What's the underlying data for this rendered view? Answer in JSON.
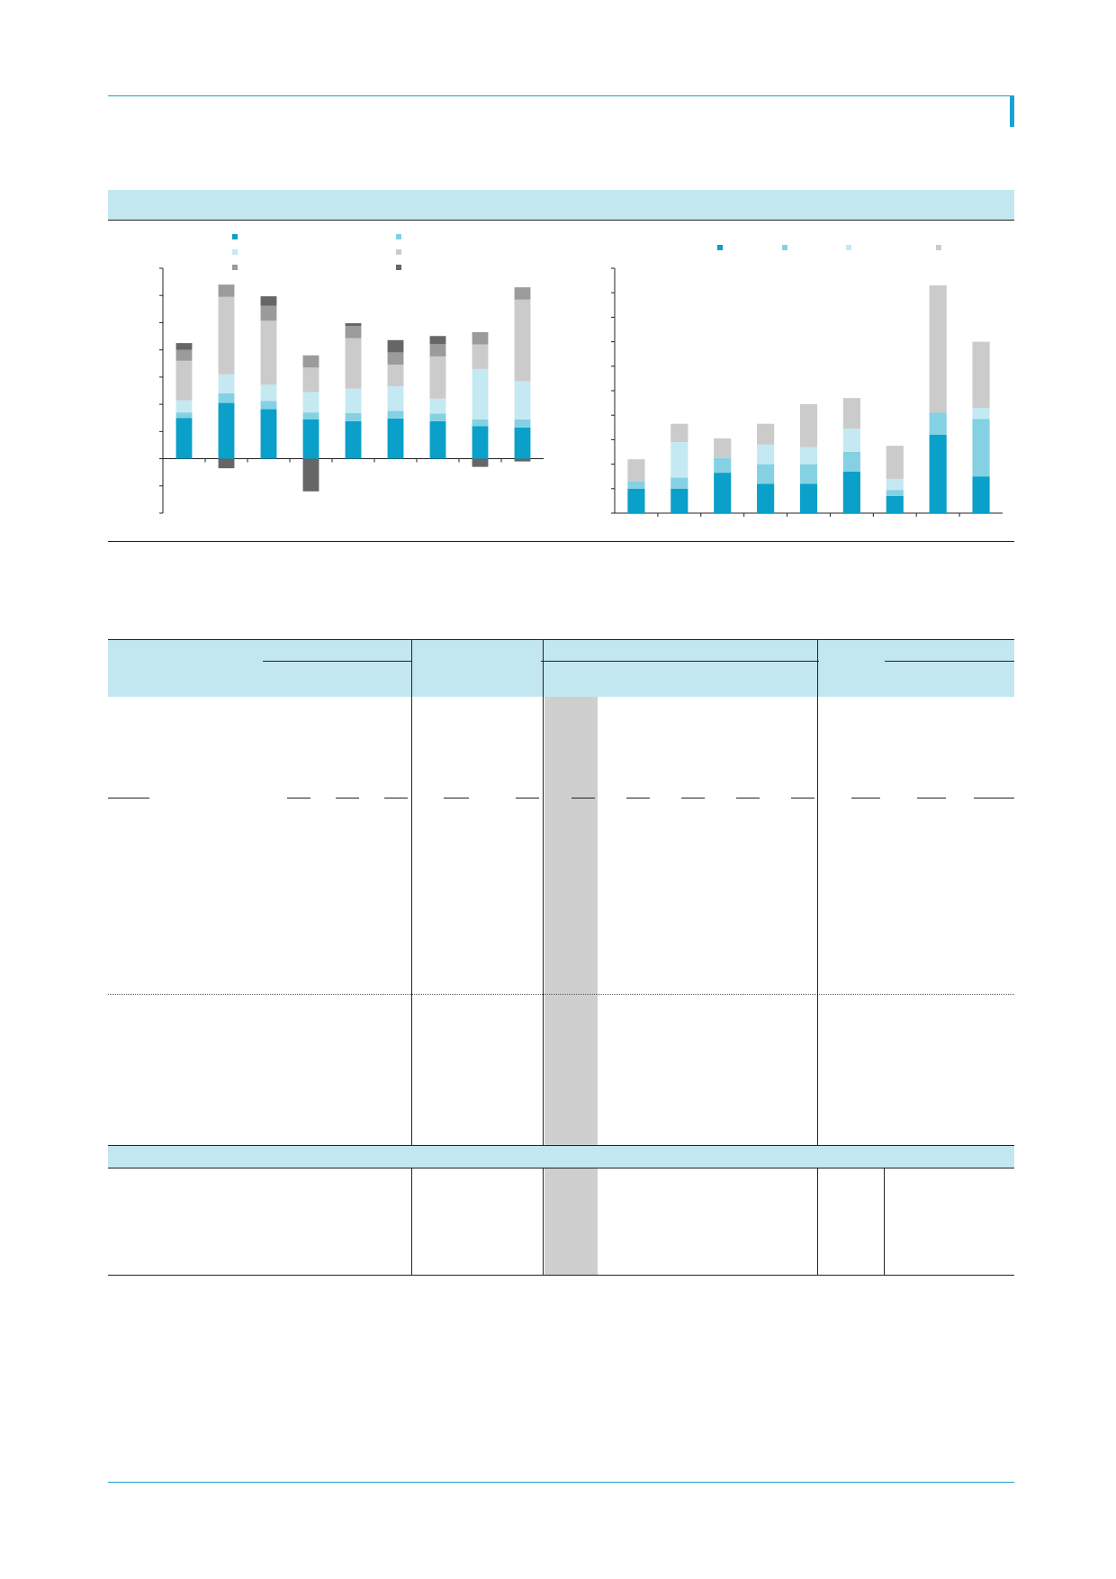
{
  "colors": {
    "accent": "#1aa3d1",
    "header_band": "#c3e7f1",
    "series_1": "#0aa0c9",
    "series_2": "#84d1e3",
    "series_3": "#c5e9f3",
    "series_4": "#cbcbcb",
    "series_5": "#9b9b9b",
    "series_6": "#666666",
    "shaded_column": "#cfcfcf"
  },
  "chart_data": [
    {
      "type": "bar",
      "stacked": true,
      "title": "",
      "xlabel": "",
      "ylabel": "",
      "categories": [
        "",
        "",
        "",
        "",
        "",
        "",
        "",
        "",
        ""
      ],
      "ylim": [
        -2,
        7
      ],
      "yticks": [
        -2,
        -1,
        0,
        1,
        2,
        3,
        4,
        5,
        6,
        7
      ],
      "legend_position": "top",
      "series": [
        {
          "name": "",
          "color": "#0aa0c9",
          "values": [
            1.5,
            2.05,
            1.82,
            1.45,
            1.38,
            1.48,
            1.38,
            1.2,
            1.15
          ]
        },
        {
          "name": "",
          "color": "#84d1e3",
          "values": [
            0.2,
            0.35,
            0.3,
            0.25,
            0.3,
            0.28,
            0.28,
            0.25,
            0.3
          ]
        },
        {
          "name": "",
          "color": "#c5e9f3",
          "values": [
            0.45,
            0.7,
            0.6,
            0.75,
            0.9,
            0.9,
            0.55,
            1.85,
            1.4
          ]
        },
        {
          "name": "",
          "color": "#cbcbcb",
          "values": [
            1.45,
            2.85,
            2.35,
            0.9,
            1.85,
            0.8,
            1.55,
            0.9,
            3.0
          ]
        },
        {
          "name": "",
          "color": "#9b9b9b",
          "values": [
            0.4,
            0.45,
            0.55,
            0.45,
            0.45,
            0.45,
            0.45,
            0.45,
            0.45
          ]
        },
        {
          "name": "",
          "color": "#666666",
          "values": [
            0.25,
            -0.35,
            0.35,
            -1.2,
            0.1,
            0.45,
            0.3,
            -0.3,
            -0.1
          ]
        }
      ]
    },
    {
      "type": "bar",
      "stacked": true,
      "title": "",
      "xlabel": "",
      "ylabel": "",
      "categories": [
        "",
        "",
        "",
        "",
        "",
        "",
        "",
        "",
        ""
      ],
      "ylim": [
        0,
        10
      ],
      "yticks": [
        0,
        1,
        2,
        3,
        4,
        5,
        6,
        7,
        8,
        9,
        10
      ],
      "legend_position": "top",
      "series": [
        {
          "name": "",
          "color": "#0aa0c9",
          "values": [
            1.0,
            1.0,
            1.65,
            1.2,
            1.2,
            1.7,
            0.7,
            3.2,
            1.5
          ]
        },
        {
          "name": "",
          "color": "#84d1e3",
          "values": [
            0.3,
            0.45,
            0.6,
            0.8,
            0.8,
            0.8,
            0.25,
            0.9,
            2.35
          ]
        },
        {
          "name": "",
          "color": "#c5e9f3",
          "values": [
            0.0,
            1.45,
            0.0,
            0.8,
            0.7,
            0.95,
            0.45,
            0.0,
            0.45
          ]
        },
        {
          "name": "",
          "color": "#cbcbcb",
          "values": [
            0.9,
            0.75,
            0.8,
            0.85,
            1.75,
            1.25,
            1.35,
            5.2,
            2.7
          ]
        }
      ]
    }
  ]
}
